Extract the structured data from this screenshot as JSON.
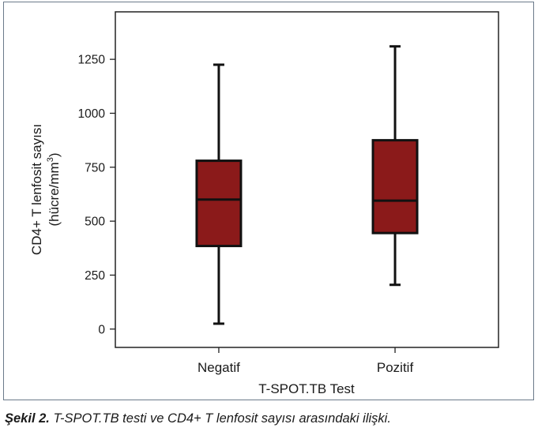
{
  "chart_data": {
    "type": "box",
    "categories": [
      "Negatif",
      "Pozitif"
    ],
    "boxes": [
      {
        "category": "Negatif",
        "min": 25,
        "q1": 385,
        "median": 600,
        "q3": 780,
        "max": 1225
      },
      {
        "category": "Pozitif",
        "min": 205,
        "q1": 445,
        "median": 595,
        "q3": 875,
        "max": 1310
      }
    ],
    "xlabel": "T-SPOT.TB Test",
    "ylabel_line1": "CD4+ T lenfosit sayısı",
    "ylabel_line2": "(hücre/mm",
    "ylabel_sup": "3",
    "ylabel_close": ")",
    "yticks": [
      0,
      250,
      500,
      750,
      1000,
      1250
    ],
    "ylim": [
      -85,
      1470
    ],
    "grid": false,
    "box_color": "#8b1a1a"
  },
  "caption": {
    "label": "Şekil 2.",
    "text": " T-SPOT.TB testi ve CD4+ T lenfosit sayısı arasındaki ilişki."
  }
}
